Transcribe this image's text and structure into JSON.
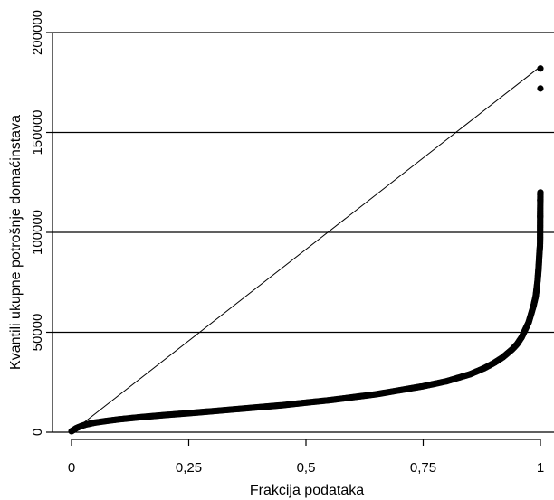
{
  "chart_data": {
    "type": "scatter",
    "title": "",
    "xlabel": "Frakcija podataka",
    "ylabel": "Kvantili ukupne potrošnje domaćinstava",
    "xlim": [
      0,
      1
    ],
    "ylim": [
      0,
      200000
    ],
    "x_ticks": [
      {
        "value": 0,
        "label": "0"
      },
      {
        "value": 0.25,
        "label": "0,25"
      },
      {
        "value": 0.5,
        "label": "0,5"
      },
      {
        "value": 0.75,
        "label": "0,75"
      },
      {
        "value": 1,
        "label": "1"
      }
    ],
    "y_ticks": [
      {
        "value": 0,
        "label": "0"
      },
      {
        "value": 50000,
        "label": "50000"
      },
      {
        "value": 100000,
        "label": "100000"
      },
      {
        "value": 150000,
        "label": "150000"
      },
      {
        "value": 200000,
        "label": "200000"
      }
    ],
    "grid": "horizontal",
    "reference_line": {
      "x": [
        0,
        1
      ],
      "y": [
        0,
        183000
      ]
    },
    "series": [
      {
        "x": [
          0.0,
          0.005,
          0.01,
          0.02,
          0.03,
          0.05,
          0.08,
          0.1,
          0.15,
          0.2,
          0.25,
          0.3,
          0.35,
          0.4,
          0.45,
          0.5,
          0.55,
          0.6,
          0.65,
          0.7,
          0.75,
          0.8,
          0.85,
          0.88,
          0.9,
          0.92,
          0.94,
          0.95,
          0.96,
          0.97,
          0.975,
          0.98,
          0.985,
          0.99,
          0.992,
          0.994,
          0.996,
          0.997,
          0.998,
          0.999,
          0.9993,
          0.9996,
          1.0
        ],
        "y": [
          500,
          1200,
          2000,
          3000,
          3800,
          4800,
          5800,
          6400,
          7600,
          8600,
          9500,
          10500,
          11500,
          12500,
          13500,
          14800,
          16000,
          17500,
          19000,
          21000,
          23000,
          25500,
          29000,
          32000,
          34500,
          37500,
          41500,
          44000,
          47500,
          52500,
          55000,
          59000,
          63000,
          68000,
          72000,
          76000,
          82000,
          86000,
          90000,
          93000,
          95000,
          112000,
          120000
        ]
      },
      {
        "x": [
          0.9995,
          0.9997,
          0.9998,
          0.99995,
          1.0
        ],
        "y": [
          108000,
          116000,
          119000,
          172000,
          182000
        ]
      }
    ]
  }
}
